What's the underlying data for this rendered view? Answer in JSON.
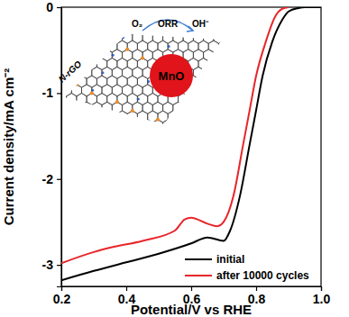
{
  "chart_data": {
    "type": "line",
    "x_label": "Potential/V vs RHE",
    "y_label": "Current density/mA cm⁻²",
    "xlim": [
      0.2,
      1.0
    ],
    "xticks": [
      0.2,
      0.4,
      0.6,
      0.8,
      {
        "value": 1,
        "label": "1.0"
      }
    ],
    "ylim": [
      -3.25,
      0
    ],
    "yticks": [
      -3,
      -2,
      -1,
      0
    ],
    "grid": false,
    "legend": "lower right",
    "series": [
      {
        "name": "initial",
        "color": "#000000",
        "line_style": "solid",
        "marker": "none",
        "x": [
          0.2,
          0.3,
          0.4,
          0.5,
          0.6,
          0.65,
          0.7,
          0.72,
          0.75,
          0.78,
          0.8,
          0.82,
          0.85,
          0.88,
          0.9,
          0.93,
          0.95,
          1.0
        ],
        "values": [
          -3.18,
          -3.07,
          -2.97,
          -2.87,
          -2.75,
          -2.68,
          -2.72,
          -2.6,
          -2.2,
          -1.6,
          -1.2,
          -0.8,
          -0.4,
          -0.15,
          -0.05,
          -0.01,
          0,
          0
        ]
      },
      {
        "name": "after 10000 cycles",
        "color": "#e8262a",
        "line_style": "solid",
        "marker": "none",
        "x": [
          0.2,
          0.3,
          0.35,
          0.45,
          0.55,
          0.58,
          0.6,
          0.65,
          0.68,
          0.7,
          0.73,
          0.76,
          0.78,
          0.8,
          0.83,
          0.86,
          0.88,
          0.9
        ],
        "values": [
          -2.98,
          -2.85,
          -2.8,
          -2.72,
          -2.6,
          -2.47,
          -2.45,
          -2.52,
          -2.55,
          -2.5,
          -2.2,
          -1.6,
          -1.2,
          -0.8,
          -0.4,
          -0.1,
          -0.02,
          0
        ]
      }
    ],
    "annotations": [
      "N-rGO",
      "MnO",
      "O₂",
      "ORR",
      "OH⁻"
    ]
  }
}
